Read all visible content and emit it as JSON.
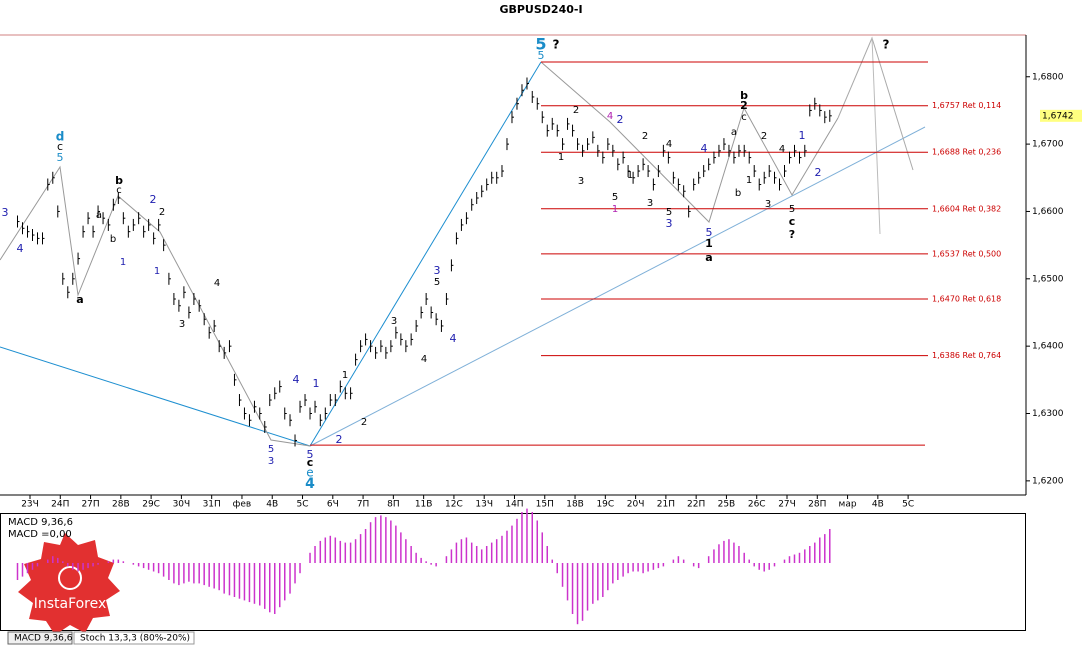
{
  "chart_data": {
    "type": "ohlc",
    "title": "GBPUSD240-I",
    "categories": [
      "23Ч",
      "24П",
      "27П",
      "28В",
      "29С",
      "30Ч",
      "31П",
      "фев",
      "4В",
      "5С",
      "6Ч",
      "7П",
      "8П",
      "11В",
      "12С",
      "13Ч",
      "14П",
      "15П",
      "18В",
      "19С",
      "20Ч",
      "21П",
      "22П",
      "25В",
      "26С",
      "27Ч",
      "28П",
      "мар",
      "4В",
      "5С"
    ],
    "values": [
      [
        1.6585,
        1.6575,
        1.657,
        1.6565,
        1.656,
        1.656
      ],
      [
        1.664,
        1.665,
        1.66,
        1.65,
        1.648,
        1.65
      ],
      [
        1.653,
        1.657,
        1.659,
        1.657,
        1.66,
        1.659
      ],
      [
        1.658,
        1.661,
        1.662,
        1.659,
        1.657,
        1.658
      ],
      [
        1.659,
        1.657,
        1.658,
        1.656,
        1.658,
        1.655
      ],
      [
        1.65,
        1.647,
        1.646,
        1.648,
        1.645,
        1.647
      ],
      [
        1.646,
        1.644,
        1.642,
        1.643,
        1.64,
        1.639
      ],
      [
        1.64,
        1.635,
        1.632,
        1.63,
        1.629,
        1.631
      ],
      [
        1.63,
        1.628,
        1.632,
        1.633,
        1.634,
        1.63
      ],
      [
        1.629,
        1.626,
        1.631,
        1.632,
        1.63,
        1.631
      ],
      [
        1.629,
        1.63,
        1.632,
        1.632,
        1.634,
        1.633
      ],
      [
        1.633,
        1.638,
        1.64,
        1.641,
        1.64,
        1.639
      ],
      [
        1.64,
        1.639,
        1.64,
        1.642,
        1.641,
        1.64
      ],
      [
        1.641,
        1.643,
        1.645,
        1.647,
        1.645,
        1.644
      ],
      [
        1.643,
        1.647,
        1.652,
        1.656,
        1.658,
        1.659
      ],
      [
        1.661,
        1.662,
        1.663,
        1.664,
        1.665,
        1.665
      ],
      [
        1.666,
        1.67,
        1.674,
        1.676,
        1.678,
        1.679
      ],
      [
        1.677,
        1.676,
        1.674,
        1.672,
        1.673,
        1.672
      ],
      [
        1.67,
        1.673,
        1.672,
        1.67,
        1.669,
        1.67
      ],
      [
        1.671,
        1.669,
        1.668,
        1.67,
        1.669,
        1.667
      ],
      [
        1.668,
        1.666,
        1.665,
        1.666,
        1.667,
        1.666
      ],
      [
        1.664,
        1.666,
        1.669,
        1.668,
        1.665,
        1.664
      ],
      [
        1.663,
        1.66,
        1.664,
        1.665,
        1.666,
        1.667
      ],
      [
        1.668,
        1.669,
        1.67,
        1.669,
        1.668,
        1.669
      ],
      [
        1.669,
        1.668,
        1.666,
        1.664,
        1.665,
        1.666
      ],
      [
        1.665,
        1.664,
        1.666,
        1.668,
        1.669,
        1.668
      ],
      [
        1.669,
        1.675,
        1.676,
        1.675,
        1.674,
        1.6742
      ],
      [],
      [],
      []
    ],
    "color": "#000000",
    "ylim": [
      1.6179,
      1.6862
    ],
    "yticks": [
      {
        "value": 1.62,
        "label": "1,6200"
      },
      {
        "value": 1.63,
        "label": "1,6300"
      },
      {
        "value": 1.64,
        "label": "1,6400"
      },
      {
        "value": 1.65,
        "label": "1,6500"
      },
      {
        "value": 1.66,
        "label": "1,6600"
      },
      {
        "value": 1.67,
        "label": "1,6700"
      },
      {
        "value": 1.68,
        "label": "1,6800"
      }
    ],
    "last_price": {
      "value": 1.6742,
      "label": "1,6742"
    },
    "levels": [
      {
        "value": 1.6757,
        "label": "1,6757 Ret 0,114"
      },
      {
        "value": 1.6688,
        "label": "1,6688 Ret 0,236"
      },
      {
        "value": 1.6604,
        "label": "1,6604 Ret 0,382"
      },
      {
        "value": 1.6537,
        "label": "1,6537 Ret 0,500"
      },
      {
        "value": 1.647,
        "label": "1,6470 Ret 0,618"
      },
      {
        "value": 1.6386,
        "label": "1,6386 Ret 0,764"
      }
    ],
    "extra_lines": [
      1.6822,
      1.6253
    ],
    "level_color": "#cc0000",
    "annotations": [
      {
        "text": "5",
        "color": "#1a8cc8"
      },
      {
        "text": "5",
        "color": "#1a8cc8"
      },
      {
        "text": "?",
        "color": "#000"
      },
      {
        "text": "?",
        "color": "#000"
      },
      {
        "text": "d",
        "color": "#1a8cc8"
      },
      {
        "text": "c",
        "color": "#000"
      },
      {
        "text": "5",
        "color": "#1a8cc8"
      },
      {
        "text": "b",
        "color": "#000"
      },
      {
        "text": "c",
        "color": "#000"
      },
      {
        "text": "a",
        "color": "#000"
      },
      {
        "text": "b",
        "color": "#000"
      },
      {
        "text": "1",
        "color": "#2020b0"
      },
      {
        "text": "2",
        "color": "#2020b0"
      },
      {
        "text": "2",
        "color": "#000"
      },
      {
        "text": "1",
        "color": "#2020b0"
      },
      {
        "text": "4",
        "color": "#000"
      },
      {
        "text": "3",
        "color": "#000"
      },
      {
        "text": "a",
        "color": "#000"
      },
      {
        "text": "3",
        "color": "#2020b0"
      },
      {
        "text": "4",
        "color": "#2020b0"
      },
      {
        "text": "4",
        "color": "#2020b0"
      },
      {
        "text": "1",
        "color": "#2020b0"
      },
      {
        "text": "1",
        "color": "#000"
      },
      {
        "text": "5",
        "color": "#2020b0"
      },
      {
        "text": "3",
        "color": "#2020b0"
      },
      {
        "text": "5",
        "color": "#2020b0"
      },
      {
        "text": "c",
        "color": "#000"
      },
      {
        "text": "e",
        "color": "#1a8cc8"
      },
      {
        "text": "4",
        "color": "#1a8cc8"
      },
      {
        "text": "2",
        "color": "#2020b0"
      },
      {
        "text": "2",
        "color": "#000"
      },
      {
        "text": "3",
        "color": "#000"
      },
      {
        "text": "4",
        "color": "#000"
      },
      {
        "text": "3",
        "color": "#2020b0"
      },
      {
        "text": "5",
        "color": "#000"
      },
      {
        "text": "4",
        "color": "#2020b0"
      },
      {
        "text": "1",
        "color": "#000"
      },
      {
        "text": "2",
        "color": "#000"
      },
      {
        "text": "3",
        "color": "#000"
      },
      {
        "text": "4",
        "color": "#b020b0"
      },
      {
        "text": "2",
        "color": "#2020b0"
      },
      {
        "text": "5",
        "color": "#000"
      },
      {
        "text": "1",
        "color": "#b020b0"
      },
      {
        "text": "1",
        "color": "#000"
      },
      {
        "text": "2",
        "color": "#000"
      },
      {
        "text": "3",
        "color": "#000"
      },
      {
        "text": "4",
        "color": "#000"
      },
      {
        "text": "5",
        "color": "#000"
      },
      {
        "text": "3",
        "color": "#2020b0"
      },
      {
        "text": "4",
        "color": "#2020b0"
      },
      {
        "text": "5",
        "color": "#2020b0"
      },
      {
        "text": "1",
        "color": "#000"
      },
      {
        "text": "a",
        "color": "#000"
      },
      {
        "text": "b",
        "color": "#000"
      },
      {
        "text": "2",
        "color": "#000"
      },
      {
        "text": "c",
        "color": "#000"
      },
      {
        "text": "a",
        "color": "#000"
      },
      {
        "text": "b",
        "color": "#000"
      },
      {
        "text": "1",
        "color": "#000"
      },
      {
        "text": "2",
        "color": "#000"
      },
      {
        "text": "4",
        "color": "#000"
      },
      {
        "text": "3",
        "color": "#000"
      },
      {
        "text": "1",
        "color": "#2020b0"
      },
      {
        "text": "2",
        "color": "#2020b0"
      },
      {
        "text": "5",
        "color": "#000"
      },
      {
        "text": "c",
        "color": "#000"
      },
      {
        "text": "?",
        "color": "#000"
      }
    ],
    "macd": {
      "label": "MACD 9,36,6",
      "value_label": "MACD =0,00",
      "color": "#cc33cc",
      "values": [
        [
          -0.001,
          -0.0008,
          -0.0006,
          -0.0004,
          -0.0002,
          0.0
        ],
        [
          0.0002,
          0.0004,
          0.0003,
          0.0001,
          -0.0002,
          -0.0004
        ],
        [
          -0.0005,
          -0.0004,
          -0.0003,
          -0.0002,
          -0.0001,
          0.0
        ],
        [
          0.0001,
          0.0002,
          0.0002,
          0.0001,
          0.0,
          -0.0001
        ],
        [
          -0.0002,
          -0.0003,
          -0.0004,
          -0.0005,
          -0.0006,
          -0.0008
        ],
        [
          -0.001,
          -0.0012,
          -0.0013,
          -0.0012,
          -0.0011,
          -0.0012
        ],
        [
          -0.0012,
          -0.0013,
          -0.0014,
          -0.0015,
          -0.0016,
          -0.0018
        ],
        [
          -0.0019,
          -0.002,
          -0.0021,
          -0.0022,
          -0.0023,
          -0.0024
        ],
        [
          -0.0025,
          -0.0027,
          -0.0029,
          -0.003,
          -0.0026,
          -0.0022
        ],
        [
          -0.0018,
          -0.0012,
          -0.0006,
          0.0,
          0.0006,
          0.001
        ],
        [
          0.0013,
          0.0015,
          0.0016,
          0.0015,
          0.0013,
          0.0012
        ],
        [
          0.0012,
          0.0014,
          0.0017,
          0.002,
          0.0024,
          0.0027
        ],
        [
          0.0028,
          0.0027,
          0.0025,
          0.0022,
          0.0018,
          0.0014
        ],
        [
          0.001,
          0.0006,
          0.0003,
          0.0001,
          -0.0001,
          -0.0002
        ],
        [
          0.0,
          0.0004,
          0.0008,
          0.0012,
          0.0014,
          0.0015
        ],
        [
          0.0012,
          0.001,
          0.0008,
          0.001,
          0.0012,
          0.0014
        ],
        [
          0.0016,
          0.0019,
          0.0022,
          0.0026,
          0.003,
          0.0032
        ],
        [
          0.003,
          0.0025,
          0.0018,
          0.001,
          0.0002,
          -0.0006
        ],
        [
          -0.0014,
          -0.0022,
          -0.003,
          -0.0036,
          -0.0034,
          -0.0028
        ],
        [
          -0.0024,
          -0.0022,
          -0.002,
          -0.0016,
          -0.0012,
          -0.001
        ],
        [
          -0.0008,
          -0.0006,
          -0.0005,
          -0.0005,
          -0.0006,
          -0.0005
        ],
        [
          -0.0004,
          -0.0003,
          -0.0002,
          0.0,
          0.0002,
          0.0004
        ],
        [
          0.0002,
          0.0,
          -0.0002,
          -0.0003,
          0.0,
          0.0004
        ],
        [
          0.0008,
          0.0011,
          0.0013,
          0.0014,
          0.0012,
          0.001
        ],
        [
          0.0006,
          0.0002,
          -0.0002,
          -0.0004,
          -0.0005,
          -0.0004
        ],
        [
          -0.0002,
          0.0,
          0.0002,
          0.0004,
          0.0005,
          0.0006
        ],
        [
          0.0008,
          0.001,
          0.0012,
          0.0015,
          0.0017,
          0.002
        ],
        [],
        [],
        []
      ]
    },
    "tabs": [
      "MACD 9,36,6",
      "Stoch 13,3,3 (80%-20%)"
    ],
    "logo": "InstaForex"
  }
}
